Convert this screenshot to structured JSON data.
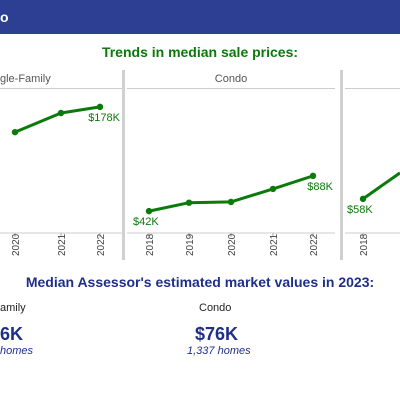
{
  "header": {
    "title": "o"
  },
  "trends_title": "Trends in median sale prices:",
  "market_title": "Median Assessor's estimated market values in 2023:",
  "colors": {
    "header_bg": "#2c3f93",
    "series": "#0a7a0a",
    "accent": "#1f2f87"
  },
  "panels": [
    {
      "name": "gle-Family",
      "start_label": "",
      "end_label": "$178K"
    },
    {
      "name": "Condo",
      "start_label": "$42K",
      "end_label": "$88K"
    },
    {
      "name": "",
      "start_label": "$58K",
      "end_label": ""
    }
  ],
  "chart_data": [
    {
      "type": "line",
      "title": "gle-Family",
      "x": [
        "2020",
        "2021",
        "2022"
      ],
      "series": [
        {
          "values": [
            145,
            170,
            178
          ]
        }
      ],
      "xlabel": "",
      "ylabel": ""
    },
    {
      "type": "line",
      "title": "Condo",
      "x": [
        "2018",
        "2019",
        "2020",
        "2021",
        "2022"
      ],
      "series": [
        {
          "values": [
            42,
            53,
            54,
            71,
            88
          ]
        }
      ],
      "xlabel": "",
      "ylabel": ""
    },
    {
      "type": "line",
      "title": "",
      "x": [
        "2018"
      ],
      "series": [
        {
          "values": [
            58
          ]
        }
      ],
      "xlabel": "",
      "ylabel": ""
    }
  ],
  "market": [
    {
      "label": "amily",
      "value": "6K",
      "homes": "homes"
    },
    {
      "label": "Condo",
      "value": "$76K",
      "homes": "1,337 homes"
    }
  ]
}
